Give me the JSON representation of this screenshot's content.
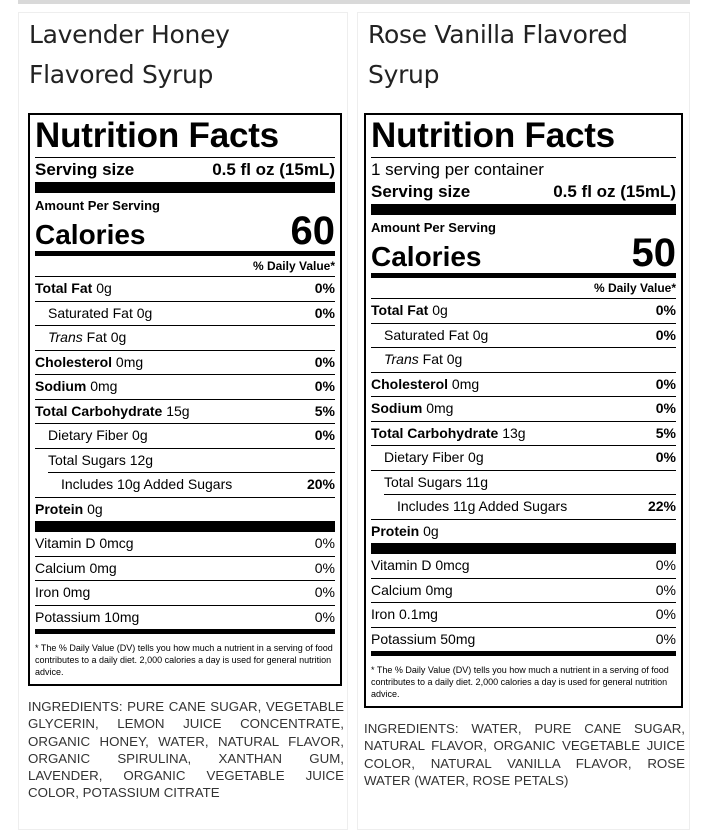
{
  "products": [
    {
      "title": "Lavender Honey Flavored Syrup",
      "nutrition": {
        "heading": "Nutrition Facts",
        "serving_size_label": "Serving size",
        "serving_size_value": "0.5 fl oz (15mL)",
        "amount_per_serving": "Amount Per Serving",
        "calories_label": "Calories",
        "calories_value": 60,
        "daily_value_header": "% Daily Value*",
        "nutrients": [
          {
            "name": "Total Fat",
            "amount": "0g",
            "dv": "0%"
          },
          {
            "name": "Saturated Fat",
            "amount": "0g",
            "dv": "0%"
          },
          {
            "name_prefix": "Trans",
            "name": "Fat",
            "amount": "0g"
          },
          {
            "name": "Cholesterol",
            "amount": "0mg",
            "dv": "0%"
          },
          {
            "name": "Sodium",
            "amount": "0mg",
            "dv": "0%"
          },
          {
            "name": "Total Carbohydrate",
            "amount": "15g",
            "dv": "5%"
          },
          {
            "name": "Dietary Fiber",
            "amount": "0g",
            "dv": "0%"
          },
          {
            "name": "Total Sugars",
            "amount": "12g"
          },
          {
            "name": "Includes 10g Added Sugars",
            "dv": "20%"
          },
          {
            "name": "Protein",
            "amount": "0g"
          }
        ],
        "vitamins": [
          {
            "name": "Vitamin D",
            "amount": "0mcg",
            "dv": "0%"
          },
          {
            "name": "Calcium",
            "amount": "0mg",
            "dv": "0%"
          },
          {
            "name": "Iron",
            "amount": "0mg",
            "dv": "0%"
          },
          {
            "name": "Potassium",
            "amount": "10mg",
            "dv": "0%"
          }
        ],
        "footnote": "* The % Daily Value (DV) tells you how much a nutrient in a serving of food contributes to a daily diet. 2,000 calories a day is used for general nutrition advice."
      },
      "ingredients": "INGREDIENTS: PURE CANE SUGAR, VEGETABLE GLYCERIN, LEMON JUICE CONCENTRATE, ORGANIC HONEY, WATER, NATURAL FLAVOR, ORGANIC SPIRULINA, XANTHAN GUM, LAVENDER, ORGANIC VEGETABLE JUICE COLOR, POTASSIUM CITRATE"
    },
    {
      "title": "Rose Vanilla Flavored Syrup",
      "nutrition": {
        "heading": "Nutrition Facts",
        "servings_per_container": "1 serving per container",
        "serving_size_label": "Serving size",
        "serving_size_value": "0.5 fl oz (15mL)",
        "amount_per_serving": "Amount Per Serving",
        "calories_label": "Calories",
        "calories_value": 50,
        "daily_value_header": "% Daily Value*",
        "nutrients": [
          {
            "name": "Total Fat",
            "amount": "0g",
            "dv": "0%"
          },
          {
            "name": "Saturated Fat",
            "amount": "0g",
            "dv": "0%"
          },
          {
            "name_prefix": "Trans",
            "name": "Fat",
            "amount": "0g"
          },
          {
            "name": "Cholesterol",
            "amount": "0mg",
            "dv": "0%"
          },
          {
            "name": "Sodium",
            "amount": "0mg",
            "dv": "0%"
          },
          {
            "name": "Total Carbohydrate",
            "amount": "13g",
            "dv": "5%"
          },
          {
            "name": "Dietary Fiber",
            "amount": "0g",
            "dv": "0%"
          },
          {
            "name": "Total Sugars",
            "amount": "11g"
          },
          {
            "name": "Includes 11g Added Sugars",
            "dv": "22%"
          },
          {
            "name": "Protein",
            "amount": "0g"
          }
        ],
        "vitamins": [
          {
            "name": "Vitamin D",
            "amount": "0mcg",
            "dv": "0%"
          },
          {
            "name": "Calcium",
            "amount": "0mg",
            "dv": "0%"
          },
          {
            "name": "Iron",
            "amount": "0.1mg",
            "dv": "0%"
          },
          {
            "name": "Potassium",
            "amount": "50mg",
            "dv": "0%"
          }
        ],
        "footnote": "* The % Daily Value (DV) tells you how much a nutrient in a serving of food contributes to a daily diet. 2,000 calories a day is used for general nutrition advice."
      },
      "ingredients": "INGREDIENTS: WATER, PURE CANE SUGAR, NATURAL FLAVOR, ORGANIC VEGETABLE JUICE COLOR, NATURAL VANILLA FLAVOR, ROSE WATER (WATER, ROSE PETALS)"
    }
  ]
}
